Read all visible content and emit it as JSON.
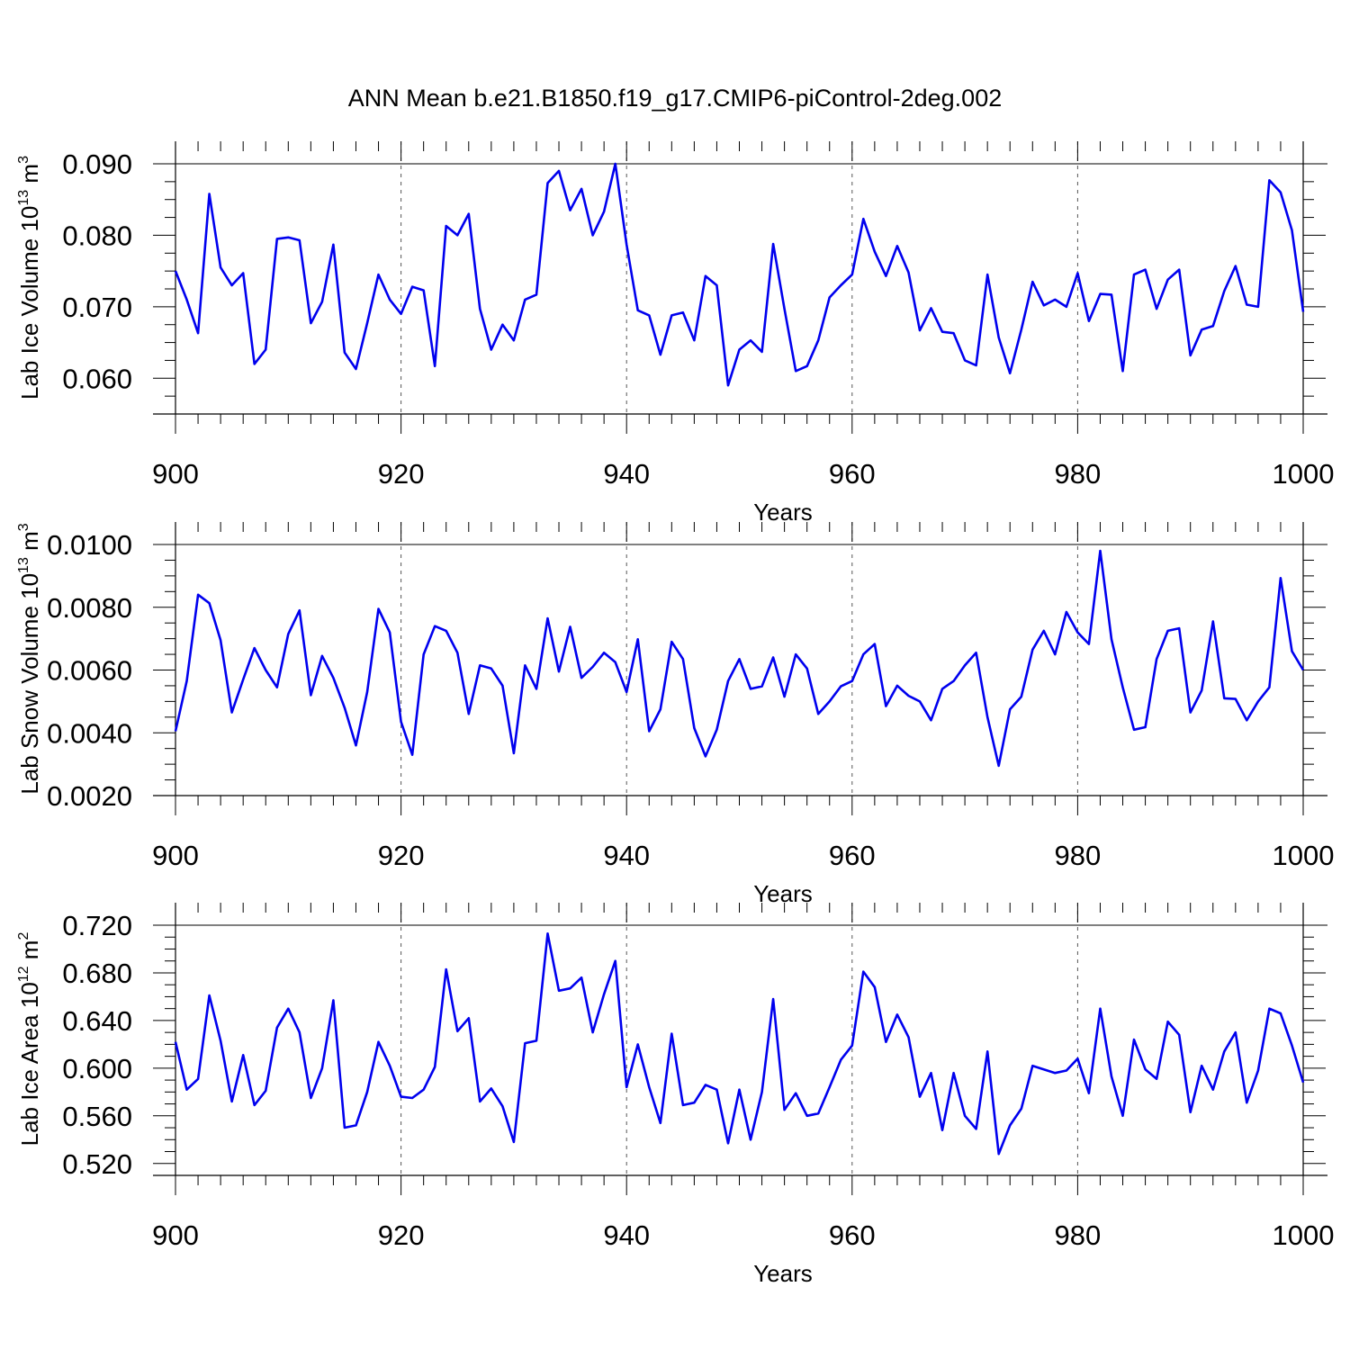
{
  "figure": {
    "title": "ANN Mean b.e21.B1850.f19_g17.CMIP6-piControl-2deg.002"
  },
  "chart_data": [
    {
      "type": "line",
      "ylabel": "Lab Ice Volume 10",
      "ylabel_exp": "13",
      "ylabel_unit": " m",
      "ylabel_unit_exp": "3",
      "xlabel": "Years",
      "xlim": [
        900,
        1000
      ],
      "ylim": [
        0.055,
        0.09
      ],
      "yticks": [
        0.06,
        0.07,
        0.08,
        0.09
      ],
      "ytick_labels": [
        "0.060",
        "0.070",
        "0.080",
        "0.090"
      ],
      "xticks": [
        900,
        920,
        940,
        960,
        980,
        1000
      ],
      "xtick_labels": [
        "900",
        "920",
        "940",
        "960",
        "980",
        "1000"
      ],
      "vgrid": [
        920,
        940,
        960,
        980
      ],
      "x_start": 900,
      "color": "#0000ee",
      "values": [
        0.075,
        0.071,
        0.0663,
        0.0858,
        0.0755,
        0.073,
        0.0747,
        0.062,
        0.064,
        0.0795,
        0.0797,
        0.0793,
        0.0677,
        0.0707,
        0.0787,
        0.0636,
        0.0613,
        0.0677,
        0.0745,
        0.071,
        0.069,
        0.0728,
        0.0723,
        0.0617,
        0.0813,
        0.08,
        0.083,
        0.0697,
        0.064,
        0.0675,
        0.0653,
        0.071,
        0.0717,
        0.0873,
        0.089,
        0.0835,
        0.0865,
        0.08,
        0.0833,
        0.09,
        0.0787,
        0.0695,
        0.0688,
        0.0633,
        0.0688,
        0.0692,
        0.0653,
        0.0743,
        0.073,
        0.059,
        0.064,
        0.0653,
        0.0637,
        0.0788,
        0.0697,
        0.061,
        0.0617,
        0.0653,
        0.0713,
        0.073,
        0.0745,
        0.0823,
        0.0777,
        0.0743,
        0.0785,
        0.0748,
        0.0667,
        0.0698,
        0.0665,
        0.0663,
        0.0625,
        0.0618,
        0.0745,
        0.0657,
        0.0607,
        0.0668,
        0.0735,
        0.0702,
        0.071,
        0.07,
        0.0747,
        0.068,
        0.0718,
        0.0717,
        0.061,
        0.0745,
        0.0752,
        0.0697,
        0.0738,
        0.0752,
        0.0632,
        0.0668,
        0.0673,
        0.0722,
        0.0757,
        0.0703,
        0.07,
        0.0877,
        0.086,
        0.0807,
        0.0693
      ]
    },
    {
      "type": "line",
      "ylabel": "Lab Snow Volume 10",
      "ylabel_exp": "13",
      "ylabel_unit": " m",
      "ylabel_unit_exp": "3",
      "xlabel": "Years",
      "xlim": [
        900,
        1000
      ],
      "ylim": [
        0.002,
        0.01
      ],
      "yticks": [
        0.002,
        0.004,
        0.006,
        0.008,
        0.01
      ],
      "ytick_labels": [
        "0.0020",
        "0.0040",
        "0.0060",
        "0.0080",
        "0.0100"
      ],
      "xticks": [
        900,
        920,
        940,
        960,
        980,
        1000
      ],
      "xtick_labels": [
        "900",
        "920",
        "940",
        "960",
        "980",
        "1000"
      ],
      "vgrid": [
        920,
        940,
        960,
        980
      ],
      "x_start": 900,
      "color": "#0000ee",
      "values": [
        0.00405,
        0.00565,
        0.0084,
        0.00813,
        0.00695,
        0.00465,
        0.0057,
        0.0067,
        0.006,
        0.00545,
        0.00715,
        0.0079,
        0.0052,
        0.00645,
        0.00575,
        0.0048,
        0.0036,
        0.0053,
        0.00795,
        0.0072,
        0.00435,
        0.0033,
        0.0065,
        0.0074,
        0.00725,
        0.00655,
        0.0046,
        0.00615,
        0.00605,
        0.0055,
        0.00335,
        0.00615,
        0.0054,
        0.00765,
        0.00595,
        0.00738,
        0.00575,
        0.0061,
        0.00655,
        0.00625,
        0.0053,
        0.00698,
        0.00405,
        0.00475,
        0.0069,
        0.00635,
        0.00415,
        0.00325,
        0.0041,
        0.00565,
        0.00635,
        0.0054,
        0.00548,
        0.0064,
        0.00515,
        0.0065,
        0.00605,
        0.0046,
        0.005,
        0.00548,
        0.00565,
        0.0065,
        0.00683,
        0.00485,
        0.0055,
        0.00518,
        0.005,
        0.0044,
        0.0054,
        0.00565,
        0.00615,
        0.00655,
        0.0045,
        0.00295,
        0.00475,
        0.00515,
        0.00665,
        0.00725,
        0.0065,
        0.00785,
        0.0072,
        0.00683,
        0.0098,
        0.00698,
        0.00545,
        0.0041,
        0.00418,
        0.00635,
        0.00725,
        0.00733,
        0.00465,
        0.00535,
        0.00755,
        0.0051,
        0.00508,
        0.0044,
        0.005,
        0.00545,
        0.00893,
        0.0066,
        0.006
      ]
    },
    {
      "type": "line",
      "ylabel": "Lab Ice Area 10",
      "ylabel_exp": "12",
      "ylabel_unit": " m",
      "ylabel_unit_exp": "2",
      "xlabel": "Years",
      "xlim": [
        900,
        1000
      ],
      "ylim": [
        0.51,
        0.72
      ],
      "yticks": [
        0.52,
        0.56,
        0.6,
        0.64,
        0.68,
        0.72
      ],
      "ytick_labels": [
        "0.520",
        "0.560",
        "0.600",
        "0.640",
        "0.680",
        "0.720"
      ],
      "xticks": [
        900,
        920,
        940,
        960,
        980,
        1000
      ],
      "xtick_labels": [
        "900",
        "920",
        "940",
        "960",
        "980",
        "1000"
      ],
      "vgrid": [
        920,
        940,
        960,
        980
      ],
      "x_start": 900,
      "color": "#0000ee",
      "values": [
        0.622,
        0.582,
        0.591,
        0.661,
        0.623,
        0.572,
        0.611,
        0.569,
        0.581,
        0.634,
        0.65,
        0.63,
        0.575,
        0.6,
        0.657,
        0.55,
        0.552,
        0.58,
        0.622,
        0.602,
        0.576,
        0.575,
        0.582,
        0.601,
        0.683,
        0.631,
        0.642,
        0.572,
        0.583,
        0.568,
        0.538,
        0.621,
        0.623,
        0.713,
        0.665,
        0.667,
        0.676,
        0.63,
        0.662,
        0.69,
        0.584,
        0.62,
        0.584,
        0.554,
        0.629,
        0.569,
        0.571,
        0.586,
        0.582,
        0.537,
        0.582,
        0.54,
        0.58,
        0.658,
        0.565,
        0.579,
        0.56,
        0.562,
        0.584,
        0.607,
        0.619,
        0.681,
        0.668,
        0.622,
        0.645,
        0.626,
        0.576,
        0.596,
        0.548,
        0.596,
        0.56,
        0.549,
        0.614,
        0.528,
        0.552,
        0.566,
        0.602,
        0.599,
        0.596,
        0.598,
        0.608,
        0.579,
        0.65,
        0.593,
        0.56,
        0.624,
        0.599,
        0.591,
        0.639,
        0.628,
        0.563,
        0.602,
        0.582,
        0.614,
        0.63,
        0.571,
        0.598,
        0.65,
        0.646,
        0.619,
        0.588
      ]
    }
  ]
}
